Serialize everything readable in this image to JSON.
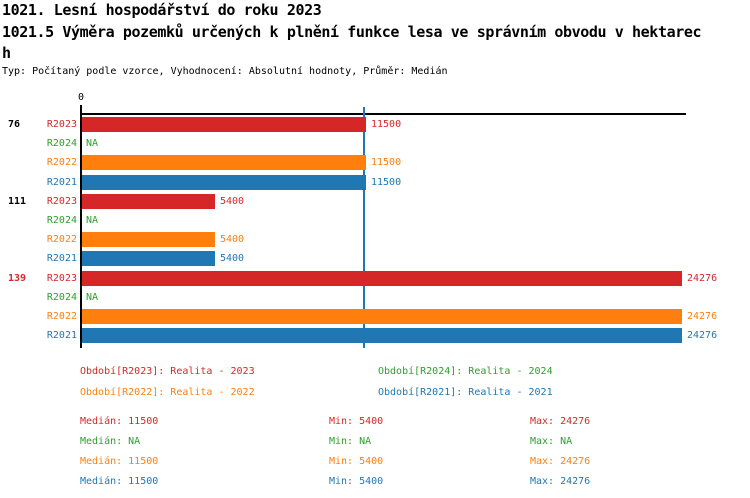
{
  "header": {
    "title_line1": "1021. Lesní hospodářství do roku 2023",
    "title_line2": "1021.5 Výměra pozemků určených k plnění funkce lesa ve správním obvodu v hektarec",
    "title_line3": "h",
    "subtitle": "Typ: Počítaný podle vzorce, Vyhodnocení: Absolutní hodnoty, Průměr: Medián"
  },
  "colors": {
    "red": "#d62728",
    "green": "#2ca02c",
    "orange": "#ff7f0e",
    "blue": "#1f77b4",
    "axis": "#000000",
    "median_line": "#1f77b4"
  },
  "chart_data": {
    "type": "bar",
    "orientation": "horizontal",
    "title": "1021.5 Výměra pozemků určených k plnění funkce lesa ve správním obvodu v hektarech",
    "xlabel": "",
    "ylabel": "",
    "xlim": [
      0,
      24276
    ],
    "grid": false,
    "axis": {
      "zero_label": "0"
    },
    "median_line_value": 11500,
    "series_order": [
      "R2023",
      "R2024",
      "R2022",
      "R2021"
    ],
    "series_colors": {
      "R2023": "#d62728",
      "R2024": "#2ca02c",
      "R2022": "#ff7f0e",
      "R2021": "#1f77b4"
    },
    "groups": [
      {
        "label": "76",
        "label_color": "#000000",
        "bars": [
          {
            "series": "R2023",
            "value": 11500,
            "display": "11500",
            "color": "#d62728"
          },
          {
            "series": "R2024",
            "value": null,
            "display": "NA",
            "color": "#2ca02c"
          },
          {
            "series": "R2022",
            "value": 11500,
            "display": "11500",
            "color": "#ff7f0e"
          },
          {
            "series": "R2021",
            "value": 11500,
            "display": "11500",
            "color": "#1f77b4"
          }
        ]
      },
      {
        "label": "111",
        "label_color": "#000000",
        "bars": [
          {
            "series": "R2023",
            "value": 5400,
            "display": "5400",
            "color": "#d62728"
          },
          {
            "series": "R2024",
            "value": null,
            "display": "NA",
            "color": "#2ca02c"
          },
          {
            "series": "R2022",
            "value": 5400,
            "display": "5400",
            "color": "#ff7f0e"
          },
          {
            "series": "R2021",
            "value": 5400,
            "display": "5400",
            "color": "#1f77b4"
          }
        ]
      },
      {
        "label": "139",
        "label_color": "#d62728",
        "bars": [
          {
            "series": "R2023",
            "value": 24276,
            "display": "24276",
            "color": "#d62728"
          },
          {
            "series": "R2024",
            "value": null,
            "display": "NA",
            "color": "#2ca02c"
          },
          {
            "series": "R2022",
            "value": 24276,
            "display": "24276",
            "color": "#ff7f0e"
          },
          {
            "series": "R2021",
            "value": 24276,
            "display": "24276",
            "color": "#1f77b4"
          }
        ]
      }
    ]
  },
  "legend": [
    {
      "label": "Období[R2023]: Realita - 2023",
      "color": "#d62728",
      "col": 0,
      "row": 0
    },
    {
      "label": "Období[R2024]: Realita - 2024",
      "color": "#2ca02c",
      "col": 1,
      "row": 0
    },
    {
      "label": "Období[R2022]: Realita - 2022",
      "color": "#ff7f0e",
      "col": 0,
      "row": 1
    },
    {
      "label": "Období[R2021]: Realita - 2021",
      "color": "#1f77b4",
      "col": 1,
      "row": 1
    }
  ],
  "stats": [
    {
      "series": "R2023",
      "color": "#d62728",
      "median": "Medián: 11500",
      "min": "Min: 5400",
      "max": "Max: 24276"
    },
    {
      "series": "R2024",
      "color": "#2ca02c",
      "median": "Medián: NA",
      "min": "Min: NA",
      "max": "Max: NA"
    },
    {
      "series": "R2022",
      "color": "#ff7f0e",
      "median": "Medián: 11500",
      "min": "Min: 5400",
      "max": "Max: 24276"
    },
    {
      "series": "R2021",
      "color": "#1f77b4",
      "median": "Medián: 11500",
      "min": "Min: 5400",
      "max": "Max: 24276"
    }
  ]
}
